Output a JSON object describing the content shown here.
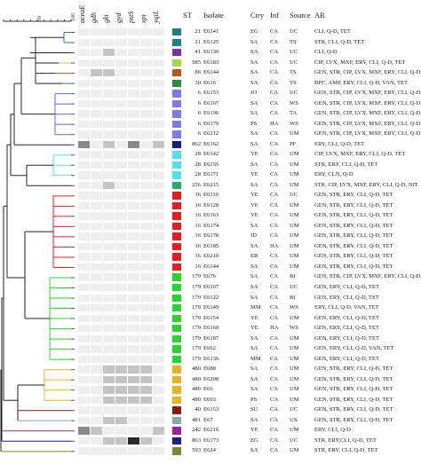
{
  "scale": {
    "min": "50",
    "max": "100"
  },
  "headers": {
    "genes": [
      "aceaE",
      "gdh",
      "gki",
      "gyd",
      "pstS",
      "xpt",
      "yqiL"
    ],
    "st": "ST",
    "isolate": "Isolate",
    "ctry": "Ctry",
    "inf": "Inf",
    "source": "Source",
    "ar": "AR"
  },
  "rows": [
    {
      "st": "21",
      "isolate": "E6141",
      "ctry": "EG",
      "inf": "CA",
      "source": "UC",
      "ar": "CLI, Q-D, TET",
      "color": "#1f7f86",
      "genes": [
        1,
        1,
        1,
        1,
        1,
        1,
        1
      ]
    },
    {
      "st": "21",
      "isolate": "E6125",
      "ctry": "SA",
      "inf": "CA",
      "source": "TS",
      "ar": "STR, CLI, Q-D, TET",
      "color": "#1f7f86",
      "genes": [
        1,
        1,
        1,
        1,
        1,
        1,
        1
      ]
    },
    {
      "st": "41",
      "isolate": "E6130",
      "ctry": "SA",
      "inf": "CA",
      "source": "UC",
      "ar": "CLI, Q-D",
      "color": "#7b2fa8",
      "genes": [
        1,
        1,
        2,
        1,
        1,
        1,
        1
      ]
    },
    {
      "st": "585",
      "isolate": "E6183",
      "ctry": "SA",
      "inf": "CA",
      "source": "UC",
      "ar": "CIP, LVX, MXF, ERY, CLI, Q-D, TET",
      "color": "#a8d84a",
      "genes": [
        1,
        1,
        1,
        1,
        1,
        1,
        1
      ]
    },
    {
      "st": "86",
      "isolate": "E6144",
      "ctry": "SA",
      "inf": "CA",
      "source": "TS",
      "ar": "GEN, STR, CIP, LVX, MXF, ERY, CLI, Q-D, TET",
      "color": "#b35a1c",
      "genes": [
        1,
        2,
        2,
        1,
        1,
        1,
        1
      ]
    },
    {
      "st": "30",
      "isolate": "E616",
      "ctry": "SA",
      "inf": "CA",
      "source": "TS",
      "ar": "BPC, AMP, ERY, CLI, Q-D, VAN, TET",
      "color": "#2e8b3a",
      "genes": [
        1,
        1,
        1,
        1,
        1,
        1,
        1
      ]
    },
    {
      "st": "6",
      "isolate": "E6153",
      "ctry": "JO",
      "inf": "CA",
      "source": "UC",
      "ar": "GEN, STR, CIP, LVX, MXF, ERY, CLI, Q-D, TET",
      "color": "#7e7be8",
      "genes": [
        1,
        1,
        1,
        1,
        1,
        1,
        1
      ]
    },
    {
      "st": "6",
      "isolate": "E6167",
      "ctry": "SA",
      "inf": "CA",
      "source": "WS",
      "ar": "GEN, STR, CIP, LVX, MXF, ERY, CLI, Q-D, TET",
      "color": "#7e7be8",
      "genes": [
        1,
        1,
        1,
        1,
        1,
        1,
        1
      ]
    },
    {
      "st": "6",
      "isolate": "E6196",
      "ctry": "SA",
      "inf": "CA",
      "source": "TA",
      "ar": "GEN, STR, CIP, LVX, MXF, ERY, CLI, Q-D, TET",
      "color": "#7e7be8",
      "genes": [
        1,
        1,
        1,
        1,
        1,
        1,
        1
      ]
    },
    {
      "st": "6",
      "isolate": "E6170",
      "ctry": "PS",
      "inf": "HA",
      "source": "WS",
      "ar": "GEN, STR, CIP, LVX, MXF, ERY, CLI, Q-D, TET",
      "color": "#7e7be8",
      "genes": [
        1,
        1,
        1,
        1,
        1,
        1,
        1
      ]
    },
    {
      "st": "6",
      "isolate": "E6212",
      "ctry": "SA",
      "inf": "CA",
      "source": "UM",
      "ar": "GEN, STR, CIP, LVX, MXF, ERY, CLI, Q-D, TET",
      "color": "#7e7be8",
      "genes": [
        1,
        1,
        1,
        1,
        1,
        1,
        1
      ]
    },
    {
      "st": "862",
      "isolate": "E6162",
      "ctry": "SA",
      "inf": "CA",
      "source": "PF",
      "ar": "ERY, CLI, Q-D, TET",
      "color": "#1a1a8c",
      "genes": [
        3,
        1,
        2,
        1,
        3,
        1,
        2
      ]
    },
    {
      "st": "28",
      "isolate": "E6142",
      "ctry": "YE",
      "inf": "CA",
      "source": "UM",
      "ar": "CIP, LVX, MXF, ERY, CLI, Q-D, TET",
      "color": "#4fe0e8",
      "genes": [
        1,
        1,
        1,
        1,
        1,
        1,
        1
      ]
    },
    {
      "st": "28",
      "isolate": "E6155",
      "ctry": "SA",
      "inf": "CA",
      "source": "UM",
      "ar": "STR, ERY, CLI, Q-D, TET",
      "color": "#4fe0e8",
      "genes": [
        1,
        1,
        1,
        1,
        1,
        1,
        1
      ]
    },
    {
      "st": "28",
      "isolate": "E6171",
      "ctry": "YE",
      "inf": "CA",
      "source": "UM",
      "ar": "ERY, CLN, Q-D",
      "color": "#4fe0e8",
      "genes": [
        1,
        1,
        1,
        1,
        1,
        1,
        1
      ]
    },
    {
      "st": "256",
      "isolate": "E6215",
      "ctry": "SA",
      "inf": "CA",
      "source": "UM",
      "ar": "STR, CIP, LVX, MXF, ERY, CLI, Q-D, NIT",
      "color": "#2fa86a",
      "genes": [
        1,
        1,
        2,
        1,
        1,
        1,
        1
      ]
    },
    {
      "st": "16",
      "isolate": "E6110",
      "ctry": "YE",
      "inf": "CA",
      "source": "UC",
      "ar": "GEN, STR, ERY, CLI, Q-D, TET",
      "color": "#e02020",
      "genes": [
        1,
        1,
        1,
        1,
        1,
        1,
        1
      ]
    },
    {
      "st": "16",
      "isolate": "E6128",
      "ctry": "YE",
      "inf": "CA",
      "source": "UM",
      "ar": "GEN, STR, ERY, CLI, Q-D, TET",
      "color": "#e02020",
      "genes": [
        1,
        1,
        1,
        1,
        1,
        1,
        1
      ]
    },
    {
      "st": "16",
      "isolate": "E6163",
      "ctry": "YE",
      "inf": "CA",
      "source": "UM",
      "ar": "GEN, STR, ERY, CLI, Q-D, TET",
      "color": "#e02020",
      "genes": [
        1,
        1,
        1,
        1,
        1,
        1,
        1
      ]
    },
    {
      "st": "16",
      "isolate": "E6174",
      "ctry": "SA",
      "inf": "CA",
      "source": "UM",
      "ar": "GEN, STR, ERY, CLI, Q-D, TET",
      "color": "#e02020",
      "genes": [
        1,
        1,
        1,
        1,
        1,
        1,
        1
      ]
    },
    {
      "st": "16",
      "isolate": "E6178",
      "ctry": "ID",
      "inf": "CA",
      "source": "UM",
      "ar": "GEN, STR, ERY, CLI, Q-D, TET",
      "color": "#e02020",
      "genes": [
        1,
        1,
        1,
        1,
        1,
        1,
        1
      ]
    },
    {
      "st": "16",
      "isolate": "E6185",
      "ctry": "SA",
      "inf": "HA",
      "source": "UM",
      "ar": "GEN, STR, ERY, CLI, Q-D, TET",
      "color": "#e02020",
      "genes": [
        1,
        1,
        1,
        1,
        1,
        1,
        1
      ]
    },
    {
      "st": "16",
      "isolate": "E6210",
      "ctry": "ER",
      "inf": "CA",
      "source": "UM",
      "ar": "GEN, STR, ERY, CLI, Q-D, TET",
      "color": "#e02020",
      "genes": [
        1,
        1,
        1,
        1,
        1,
        1,
        1
      ]
    },
    {
      "st": "16",
      "isolate": "E6144",
      "ctry": "SA",
      "inf": "CA",
      "source": "UM",
      "ar": "GEN, STR, ERY, CLI, Q-D, TET",
      "color": "#e02020",
      "genes": [
        1,
        1,
        1,
        1,
        1,
        1,
        1
      ]
    },
    {
      "st": "179",
      "isolate": "E676",
      "ctry": "SA",
      "inf": "CA",
      "source": "BI",
      "ar": "GEN, STR, CIP, LVX, MXF, ERY, CLI, Q-D, TET",
      "color": "#28d428",
      "genes": [
        1,
        1,
        1,
        1,
        1,
        1,
        1
      ]
    },
    {
      "st": "179",
      "isolate": "E6107",
      "ctry": "SA",
      "inf": "CA",
      "source": "UC",
      "ar": "GEN, ERY, CLI, Q-D, TET",
      "color": "#28d428",
      "genes": [
        1,
        1,
        1,
        1,
        1,
        1,
        1
      ]
    },
    {
      "st": "179",
      "isolate": "E6122",
      "ctry": "SA",
      "inf": "CA",
      "source": "BI",
      "ar": "GEN, ERY, CLI, Q-D, TET",
      "color": "#28d428",
      "genes": [
        1,
        1,
        1,
        1,
        1,
        1,
        1
      ]
    },
    {
      "st": "179",
      "isolate": "E6149",
      "ctry": "MM",
      "inf": "CA",
      "source": "WS",
      "ar": "ERY, CLI, Q-D, VAN, TET",
      "color": "#28d428",
      "genes": [
        1,
        1,
        1,
        1,
        1,
        1,
        1
      ]
    },
    {
      "st": "179",
      "isolate": "E6154",
      "ctry": "YE",
      "inf": "CA",
      "source": "UM",
      "ar": "GEN, ERY, CLI, Q-D, TET",
      "color": "#28d428",
      "genes": [
        1,
        1,
        1,
        1,
        1,
        1,
        1
      ]
    },
    {
      "st": "179",
      "isolate": "E6160",
      "ctry": "YE",
      "inf": "HA",
      "source": "WS",
      "ar": "GEN, ERY, CLI, Q-D, TET",
      "color": "#28d428",
      "genes": [
        1,
        1,
        1,
        1,
        1,
        1,
        1
      ]
    },
    {
      "st": "179",
      "isolate": "E6187",
      "ctry": "SA",
      "inf": "CA",
      "source": "UM",
      "ar": "GEN, ERY, CLI, Q-D, TET",
      "color": "#28d428",
      "genes": [
        1,
        1,
        1,
        1,
        1,
        1,
        1
      ]
    },
    {
      "st": "179",
      "isolate": "E662",
      "ctry": "SA",
      "inf": "CA",
      "source": "UM",
      "ar": "GEN, ERY, CLI, Q-D, VAN, TET",
      "color": "#28d428",
      "genes": [
        1,
        1,
        1,
        1,
        1,
        1,
        1
      ]
    },
    {
      "st": "179",
      "isolate": "E6136",
      "ctry": "MM",
      "inf": "CA",
      "source": "UM",
      "ar": "GEN, ERY, CLI, Q-D, TET",
      "color": "#28d428",
      "genes": [
        1,
        1,
        1,
        1,
        1,
        1,
        1
      ]
    },
    {
      "st": "480",
      "isolate": "E688",
      "ctry": "SA",
      "inf": "CA",
      "source": "UM",
      "ar": "GEN, STR, ERY, CLI, Q-D, TET",
      "color": "#e6b422",
      "genes": [
        1,
        1,
        2,
        2,
        2,
        2,
        1
      ]
    },
    {
      "st": "480",
      "isolate": "E6208",
      "ctry": "SA",
      "inf": "CA",
      "source": "UM",
      "ar": "GEN, STR, ERY, CLI, Q-D, TET",
      "color": "#e6b422",
      "genes": [
        1,
        1,
        2,
        2,
        2,
        2,
        1
      ]
    },
    {
      "st": "480",
      "isolate": "E66",
      "ctry": "SA",
      "inf": "CA",
      "source": "UM",
      "ar": "GEN, STR, ERY, CLI, Q-D, TET",
      "color": "#e6b422",
      "genes": [
        1,
        1,
        2,
        2,
        2,
        2,
        1
      ]
    },
    {
      "st": "480",
      "isolate": "E693",
      "ctry": "PS",
      "inf": "CA",
      "source": "UM",
      "ar": "GEN, STR, ERY, CLI, Q-D, TET",
      "color": "#e6b422",
      "genes": [
        1,
        1,
        2,
        2,
        2,
        2,
        1
      ]
    },
    {
      "st": "40",
      "isolate": "E6153",
      "ctry": "SU",
      "inf": "CA",
      "source": "UC",
      "ar": "GEN, STR, ERY, CLI, Q-D, TET",
      "color": "#8c1a1a",
      "genes": [
        1,
        1,
        1,
        1,
        1,
        1,
        1
      ]
    },
    {
      "st": "481",
      "isolate": "E67",
      "ctry": "SA",
      "inf": "CA",
      "source": "US",
      "ar": "GEN, STR, ERY, CLI, Q-D, TET",
      "color": "#8aa8a8",
      "genes": [
        1,
        1,
        2,
        2,
        1,
        1,
        1
      ]
    },
    {
      "st": "242",
      "isolate": "E6216",
      "ctry": "YE",
      "inf": "CA",
      "source": "UM",
      "ar": "ERY, CLI, Q-D",
      "color": "#a020a0",
      "genes": [
        3,
        2,
        1,
        1,
        1,
        1,
        2
      ]
    },
    {
      "st": "863",
      "isolate": "E6173",
      "ctry": "EG",
      "inf": "CA",
      "source": "UC",
      "ar": "STR, ERY,CLI, Q-D, TET",
      "color": "#1f1f8c",
      "genes": [
        1,
        1,
        2,
        2,
        4,
        2,
        1
      ]
    },
    {
      "st": "593",
      "isolate": "E624",
      "ctry": "SA",
      "inf": "CA",
      "source": "UM",
      "ar": "STR, ERY, CLI, Q-D, TET",
      "color": "#7a8a2a",
      "genes": [
        1,
        1,
        1,
        1,
        1,
        1,
        1
      ]
    }
  ],
  "gene_shades": {
    "1": "#eeeeee",
    "2": "#c4c4c4",
    "3": "#8a8a8a",
    "4": "#2a2a2a"
  }
}
